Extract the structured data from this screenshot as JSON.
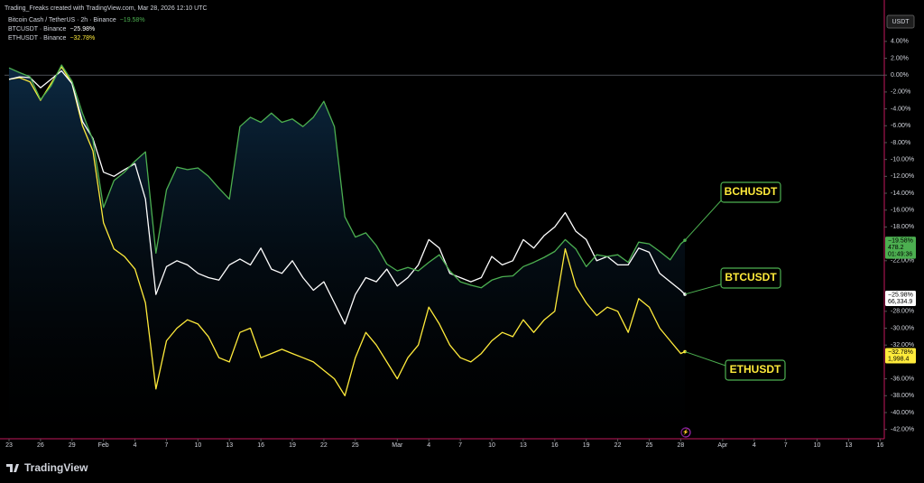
{
  "chart_data": {
    "type": "line",
    "header": "Trading_Freaks created with TradingView.com, Mar 28, 2026 12:10 UTC",
    "currency": "USDT",
    "logo": "TradingView",
    "xlim": [
      -0.43,
      83.4
    ],
    "ylim": [
      -43,
      7.3
    ],
    "xticks": [
      {
        "value": 0,
        "label": "23"
      },
      {
        "value": 3,
        "label": "26"
      },
      {
        "value": 6,
        "label": "29"
      },
      {
        "value": 9,
        "label": "Feb"
      },
      {
        "value": 12,
        "label": "4"
      },
      {
        "value": 15,
        "label": "7"
      },
      {
        "value": 18,
        "label": "10"
      },
      {
        "value": 21,
        "label": "13"
      },
      {
        "value": 24,
        "label": "16"
      },
      {
        "value": 27,
        "label": "19"
      },
      {
        "value": 30,
        "label": "22"
      },
      {
        "value": 33,
        "label": "25"
      },
      {
        "value": 37,
        "label": "Mar"
      },
      {
        "value": 40,
        "label": "4"
      },
      {
        "value": 43,
        "label": "7"
      },
      {
        "value": 46,
        "label": "10"
      },
      {
        "value": 49,
        "label": "13"
      },
      {
        "value": 52,
        "label": "16"
      },
      {
        "value": 55,
        "label": "19"
      },
      {
        "value": 58,
        "label": "22"
      },
      {
        "value": 61,
        "label": "25"
      },
      {
        "value": 64,
        "label": "28"
      },
      {
        "value": 68,
        "label": "Apr"
      },
      {
        "value": 71,
        "label": "4"
      },
      {
        "value": 74,
        "label": "7"
      },
      {
        "value": 77,
        "label": "10"
      },
      {
        "value": 80,
        "label": "13"
      },
      {
        "value": 83,
        "label": "16"
      }
    ],
    "yticks": [
      {
        "value": 4,
        "label": "4.00%"
      },
      {
        "value": 2,
        "label": "2.00%"
      },
      {
        "value": 0,
        "label": "0.00%"
      },
      {
        "value": -2,
        "label": "-2.00%"
      },
      {
        "value": -4,
        "label": "-4.00%"
      },
      {
        "value": -6,
        "label": "-6.00%"
      },
      {
        "value": -8,
        "label": "-8.00%"
      },
      {
        "value": -10,
        "label": "-10.00%"
      },
      {
        "value": -12,
        "label": "-12.00%"
      },
      {
        "value": -14,
        "label": "-14.00%"
      },
      {
        "value": -16,
        "label": "-16.00%"
      },
      {
        "value": -18,
        "label": "-18.00%"
      },
      {
        "value": -22,
        "label": "-22.00%"
      },
      {
        "value": -28,
        "label": "-28.00%"
      },
      {
        "value": -30,
        "label": "-30.00%"
      },
      {
        "value": -32,
        "label": "-32.00%"
      },
      {
        "value": -36,
        "label": "-36.00%"
      },
      {
        "value": -38,
        "label": "-38.00%"
      },
      {
        "value": -40,
        "label": "-40.00%"
      },
      {
        "value": -42,
        "label": "-42.00%"
      }
    ],
    "x": [
      0,
      1,
      2,
      3,
      4,
      5,
      6,
      7,
      8,
      9,
      10,
      11,
      12,
      13,
      14,
      15,
      16,
      17,
      18,
      19,
      20,
      21,
      22,
      23,
      24,
      25,
      26,
      27,
      28,
      29,
      30,
      31,
      32,
      33,
      34,
      35,
      36,
      37,
      38,
      39,
      40,
      41,
      42,
      43,
      44,
      45,
      46,
      47,
      48,
      49,
      50,
      51,
      52,
      53,
      54,
      55,
      56,
      57,
      58,
      59,
      60,
      61,
      62,
      63,
      64,
      64.4
    ],
    "series": [
      {
        "name": "BCHUSDT",
        "legend_label": "Bitcoin Cash / TetherUS · 2h · Binance",
        "last_label": "−19.58%",
        "price": "478.2",
        "countdown": "01:49:36",
        "color": "#4caf50",
        "values": [
          0.86,
          0.3,
          -0.2,
          -2.9,
          -1.3,
          1.2,
          -0.7,
          -4.5,
          -7.7,
          -15.7,
          -12.5,
          -11.5,
          -10.2,
          -9.1,
          -21.1,
          -13.6,
          -10.9,
          -11.2,
          -11.0,
          -12.0,
          -13.4,
          -14.7,
          -6.1,
          -5.0,
          -5.6,
          -4.5,
          -5.6,
          -5.2,
          -6.1,
          -5.0,
          -3.1,
          -6.1,
          -16.8,
          -19.2,
          -18.7,
          -20.2,
          -22.4,
          -23.2,
          -22.8,
          -23.2,
          -22.2,
          -21.3,
          -23.2,
          -24.5,
          -24.9,
          -25.2,
          -24.3,
          -23.9,
          -23.8,
          -22.7,
          -22.2,
          -21.6,
          -20.9,
          -19.5,
          -20.6,
          -22.7,
          -21.3,
          -21.5,
          -21.3,
          -22.2,
          -19.8,
          -20.0,
          -20.9,
          -21.9,
          -20.0,
          -19.58
        ]
      },
      {
        "name": "BTCUSDT",
        "legend_label": "BTCUSDT · Binance",
        "last_label": "−25.98%",
        "price": "66,334.9",
        "color": "#ffffff",
        "values": [
          -0.5,
          -0.2,
          -0.3,
          -1.5,
          -0.5,
          0.5,
          -1.0,
          -5.5,
          -7.5,
          -11.5,
          -12.0,
          -11.2,
          -10.5,
          -14.7,
          -26.0,
          -22.7,
          -22.0,
          -22.5,
          -23.5,
          -24.0,
          -24.3,
          -22.5,
          -21.8,
          -22.5,
          -20.5,
          -23.0,
          -23.5,
          -22.0,
          -24.0,
          -25.5,
          -24.5,
          -27.0,
          -29.5,
          -26.0,
          -24.0,
          -24.5,
          -23.0,
          -25.0,
          -24.0,
          -22.5,
          -19.5,
          -20.5,
          -23.5,
          -24.0,
          -24.5,
          -24.0,
          -21.5,
          -22.5,
          -22.0,
          -19.5,
          -20.5,
          -19.0,
          -18.0,
          -16.3,
          -18.5,
          -19.5,
          -22.0,
          -21.5,
          -22.5,
          -22.5,
          -20.5,
          -21.0,
          -23.5,
          -24.5,
          -25.5,
          -25.98
        ]
      },
      {
        "name": "ETHUSDT",
        "legend_label": "ETHUSDT · Binance",
        "last_label": "−32.78%",
        "price": "1,998.4",
        "color": "#ffeb3b",
        "values": [
          -0.5,
          -0.3,
          -0.8,
          -3.0,
          -1.0,
          1.0,
          -1.0,
          -6.0,
          -9.0,
          -17.5,
          -20.6,
          -21.5,
          -23.0,
          -27.0,
          -37.2,
          -31.5,
          -30.0,
          -29.0,
          -29.5,
          -31.0,
          -33.5,
          -34.0,
          -30.5,
          -30.0,
          -33.5,
          -33.0,
          -32.5,
          -33.0,
          -33.5,
          -34.0,
          -35.0,
          -36.0,
          -38.0,
          -33.5,
          -30.5,
          -32.0,
          -34.0,
          -36.0,
          -33.5,
          -32.0,
          -27.5,
          -29.5,
          -32.0,
          -33.5,
          -34.0,
          -33.0,
          -31.5,
          -30.5,
          -31.0,
          -29.0,
          -30.5,
          -29.0,
          -28.0,
          -20.6,
          -25.0,
          -27.0,
          -28.5,
          -27.5,
          -28.0,
          -30.5,
          -26.5,
          -27.5,
          -30.0,
          -31.5,
          -33.0,
          -32.78
        ]
      }
    ]
  }
}
